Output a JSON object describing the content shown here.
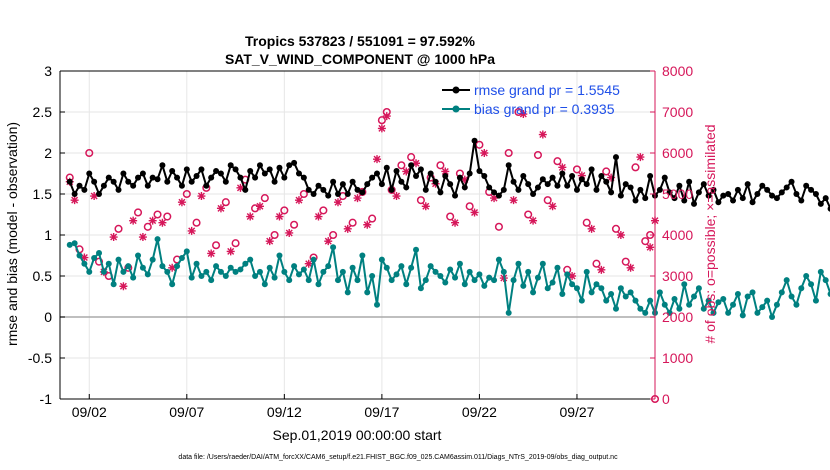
{
  "chart_data": {
    "type": "line",
    "title_line1": "Tropics 537823 / 551091 = 97.592%",
    "title_line2": "SAT_V_WIND_COMPONENT @ 1000 hPa",
    "xlabel": "Sep.01,2019 00:00:00 start",
    "ylabel_left": "rmse and bias (model - observation)",
    "ylabel_right": "# of obs: o=possible; ×=assimilated",
    "footnote": "data file: /Users/raeder/DAI/ATM_forcXX/CAM6_setup/f.e21.FHIST_BGC.f09_025.CAM6assim.011/Diags_NTrS_2019-09/obs_diag_output.nc",
    "xlim": [
      0.5,
      31.0
    ],
    "ylim_left": [
      -1,
      3
    ],
    "ylim_right": [
      0,
      8000
    ],
    "x_ticks": [
      {
        "x": 2,
        "label": "09/02"
      },
      {
        "x": 7,
        "label": "09/07"
      },
      {
        "x": 12,
        "label": "09/12"
      },
      {
        "x": 17,
        "label": "09/17"
      },
      {
        "x": 22,
        "label": "09/22"
      },
      {
        "x": 27,
        "label": "09/27"
      }
    ],
    "y_ticks_left": [
      "3",
      "2.5",
      "2",
      "1.5",
      "1",
      "0.5",
      "0",
      "-0.5",
      "-1"
    ],
    "y_ticks_right": [
      "8000",
      "7000",
      "6000",
      "5000",
      "4000",
      "3000",
      "2000",
      "1000",
      "0"
    ],
    "legend": [
      {
        "label": "rmse grand pr = 1.5545",
        "color": "#000000"
      },
      {
        "label": "bias grand pr = 0.3935",
        "color": "#008080"
      }
    ],
    "colors": {
      "rmse": "#000000",
      "bias": "#008080",
      "obs": "#D6175A",
      "zero_line": "#aaaaaa",
      "grid": "#e6e6e6",
      "legend_text": "#1F4FE8"
    },
    "series": [
      {
        "name": "rmse",
        "axis": "left",
        "x_start": 1.0,
        "x_step": 0.25,
        "values": [
          1.65,
          1.5,
          1.6,
          1.55,
          1.75,
          1.65,
          1.5,
          1.6,
          1.7,
          1.65,
          1.55,
          1.75,
          1.65,
          1.6,
          1.7,
          1.75,
          1.6,
          1.7,
          1.68,
          1.85,
          1.65,
          1.78,
          1.7,
          1.6,
          1.8,
          1.65,
          1.72,
          1.8,
          1.6,
          1.7,
          1.78,
          1.75,
          1.65,
          1.85,
          1.8,
          1.7,
          1.55,
          1.78,
          1.7,
          1.85,
          1.75,
          1.8,
          1.65,
          1.82,
          1.7,
          1.85,
          1.88,
          1.75,
          1.7,
          1.55,
          1.5,
          1.6,
          1.55,
          1.48,
          1.65,
          1.5,
          1.62,
          1.5,
          1.65,
          1.55,
          1.52,
          1.62,
          1.7,
          1.75,
          1.62,
          1.82,
          1.55,
          1.78,
          1.65,
          1.58,
          1.85,
          1.72,
          1.8,
          1.55,
          1.75,
          1.65,
          1.52,
          1.72,
          1.62,
          1.48,
          1.7,
          1.58,
          1.75,
          2.15,
          1.78,
          1.72,
          1.58,
          1.52,
          1.48,
          1.55,
          1.85,
          1.65,
          1.55,
          1.72,
          1.62,
          1.5,
          1.58,
          1.68,
          1.62,
          1.7,
          1.6,
          1.75,
          1.6,
          1.72,
          1.55,
          1.68,
          1.62,
          1.8,
          1.55,
          1.72,
          1.65,
          1.52,
          1.95,
          1.48,
          1.62,
          1.58,
          1.42,
          1.55,
          1.45,
          1.72,
          1.48,
          1.55,
          1.7,
          1.52,
          1.45,
          1.6,
          1.42,
          1.65,
          1.38,
          1.52,
          1.62,
          1.48,
          1.55,
          1.4,
          1.48,
          1.5,
          1.42,
          1.55,
          1.45,
          1.62,
          1.4,
          1.5,
          1.6,
          1.55,
          1.48,
          1.45,
          1.52,
          1.58,
          1.65,
          1.5,
          1.42,
          1.6,
          1.55,
          1.5,
          1.38,
          1.45,
          1.32,
          1.4,
          1.28,
          1.42,
          1.35,
          1.55,
          1.6,
          1.68,
          1.75,
          1.58,
          1.65,
          1.55,
          1.62,
          1.6,
          1.62,
          1.55,
          1.58,
          1.45,
          1.52,
          1.48,
          1.6,
          1.4,
          1.55,
          1.5,
          1.62,
          1.45,
          1.52,
          1.58,
          1.48,
          1.55,
          1.62,
          1.5,
          1.6,
          1.42,
          1.55,
          1.7,
          1.62,
          1.5,
          1.58,
          1.45,
          1.52,
          1.48,
          1.55,
          1.45,
          1.68,
          1.6,
          1.52,
          1.42,
          1.5,
          1.58,
          1.45,
          1.6,
          1.38,
          1.55,
          1.48,
          1.72,
          1.62,
          1.5,
          1.65,
          1.42,
          1.52,
          1.58,
          1.45,
          1.52,
          1.45,
          1.58,
          1.48,
          1.65,
          1.55,
          1.6,
          1.42,
          1.62,
          1.58,
          1.5,
          1.52,
          1.72,
          1.55,
          1.75,
          1.62,
          1.5,
          1.72,
          1.6,
          1.55,
          1.68,
          1.55,
          1.62,
          1.5,
          1.58,
          1.52,
          1.48,
          1.6,
          1.55,
          1.5,
          1.45,
          1.35,
          1.52,
          1.3,
          1.45,
          1.48
        ]
      },
      {
        "name": "bias",
        "axis": "left",
        "x_start": 1.0,
        "x_step": 0.25,
        "values": [
          0.88,
          0.9,
          0.75,
          0.65,
          0.55,
          0.72,
          0.78,
          0.55,
          0.65,
          0.4,
          0.7,
          0.55,
          0.62,
          0.48,
          0.75,
          0.6,
          0.52,
          0.7,
          0.95,
          0.62,
          0.55,
          0.4,
          0.62,
          0.72,
          0.8,
          0.48,
          0.65,
          0.5,
          0.55,
          0.45,
          0.62,
          0.55,
          0.5,
          0.6,
          0.55,
          0.58,
          0.65,
          0.7,
          0.5,
          0.55,
          0.4,
          0.6,
          0.48,
          0.75,
          0.55,
          0.45,
          0.62,
          0.52,
          0.58,
          0.45,
          0.7,
          0.4,
          0.55,
          0.62,
          0.85,
          0.45,
          0.55,
          0.3,
          0.6,
          0.45,
          0.75,
          0.3,
          0.5,
          0.15,
          0.7,
          0.6,
          0.45,
          0.52,
          0.62,
          0.4,
          0.6,
          0.82,
          0.35,
          0.45,
          0.62,
          0.55,
          0.5,
          0.42,
          0.58,
          0.48,
          0.65,
          0.4,
          0.55,
          0.45,
          0.52,
          0.38,
          0.48,
          0.45,
          0.7,
          0.55,
          0.05,
          0.45,
          0.65,
          0.38,
          0.55,
          0.3,
          0.48,
          0.65,
          0.35,
          0.42,
          0.6,
          0.28,
          0.52,
          0.4,
          0.35,
          0.2,
          0.55,
          0.3,
          0.4,
          0.35,
          0.2,
          0.28,
          0.1,
          0.35,
          0.25,
          0.3,
          0.2,
          0.1,
          0.05,
          0.2,
          0.05,
          0.3,
          0.15,
          0.05,
          0.22,
          0.1,
          0.4,
          0.15,
          0.25,
          0.35,
          0.1,
          0.2,
          0.05,
          0.18,
          0.22,
          0.05,
          0.15,
          0.28,
          0.02,
          0.25,
          0.3,
          0.05,
          0.12,
          0.2,
          0.0,
          0.15,
          0.3,
          0.45,
          0.25,
          0.15,
          0.35,
          0.5,
          0.4,
          0.2,
          0.55,
          0.45,
          0.28,
          0.15,
          0.05,
          0.22,
          0.08,
          0.25,
          0.05,
          0.15,
          0.3,
          0.18,
          0.1,
          0.25,
          0.05,
          0.15,
          0.2,
          0.05,
          0.25,
          0.1,
          -0.08,
          0.15,
          -0.05,
          0.1,
          0.25,
          0.05,
          0.15,
          0.3,
          0.2,
          0.08,
          0.25,
          0.15,
          0.3,
          0.22,
          0.35,
          0.25,
          0.1,
          0.2,
          0.35,
          0.4,
          0.3,
          0.2,
          0.15,
          0.38,
          0.28,
          0.4,
          0.38,
          0.45,
          0.4,
          0.35,
          0.2,
          0.42,
          0.35,
          0.45,
          0.72,
          0.3,
          0.05,
          0.15,
          0.2,
          0.08,
          0.4,
          0.15,
          0.05,
          0.38,
          0.25,
          0.45,
          0.58,
          0.05,
          0.4,
          0.25,
          0.48,
          0.35,
          0.55,
          0.3,
          0.42,
          0.25,
          0.3,
          0.45,
          0.55,
          0.28,
          0.4,
          0.3,
          0.02,
          0.3,
          0.35,
          0.4,
          0.45,
          0.3,
          0.58,
          0.62,
          0.45,
          0.52,
          0.3,
          0.35,
          0.3
        ]
      },
      {
        "name": "obs_possible",
        "axis": "right",
        "marker": "o",
        "points": [
          [
            1.0,
            5400
          ],
          [
            1.5,
            3650
          ],
          [
            2.0,
            6000
          ],
          [
            2.5,
            3350
          ],
          [
            3.0,
            3000
          ],
          [
            3.5,
            4150
          ],
          [
            4.0,
            3200
          ],
          [
            4.5,
            4550
          ],
          [
            5.0,
            4200
          ],
          [
            5.5,
            4500
          ],
          [
            6.0,
            4450
          ],
          [
            6.5,
            3400
          ],
          [
            7.0,
            5000
          ],
          [
            7.5,
            4300
          ],
          [
            8.0,
            5150
          ],
          [
            8.5,
            3750
          ],
          [
            9.0,
            4800
          ],
          [
            9.5,
            3800
          ],
          [
            10.0,
            5350
          ],
          [
            10.5,
            4650
          ],
          [
            11.0,
            4900
          ],
          [
            11.5,
            4000
          ],
          [
            12.0,
            4600
          ],
          [
            12.5,
            4250
          ],
          [
            13.0,
            5000
          ],
          [
            13.5,
            3450
          ],
          [
            14.0,
            4600
          ],
          [
            14.5,
            4000
          ],
          [
            15.0,
            4950
          ],
          [
            15.5,
            4300
          ],
          [
            16.0,
            5050
          ],
          [
            16.5,
            4400
          ],
          [
            17.0,
            6800
          ],
          [
            17.25,
            7000
          ],
          [
            17.5,
            5100
          ],
          [
            18.0,
            5700
          ],
          [
            18.5,
            5900
          ],
          [
            19.0,
            4850
          ],
          [
            19.5,
            5400
          ],
          [
            20.0,
            5700
          ],
          [
            20.5,
            4450
          ],
          [
            21.0,
            5500
          ],
          [
            21.5,
            4700
          ],
          [
            22.0,
            6200
          ],
          [
            22.5,
            5050
          ],
          [
            23.0,
            4200
          ],
          [
            23.5,
            6000
          ],
          [
            24.0,
            7000
          ],
          [
            24.5,
            4500
          ],
          [
            25.0,
            5950
          ],
          [
            25.5,
            4850
          ],
          [
            26.0,
            5800
          ],
          [
            26.5,
            3150
          ],
          [
            27.0,
            5600
          ],
          [
            27.5,
            4300
          ],
          [
            28.0,
            3300
          ],
          [
            28.5,
            5550
          ],
          [
            29.0,
            4150
          ],
          [
            29.5,
            3350
          ],
          [
            30.0,
            5650
          ],
          [
            30.5,
            3850
          ],
          [
            30.75,
            4000
          ],
          [
            31.0,
            0
          ]
        ]
      },
      {
        "name": "obs_assimilated",
        "axis": "right",
        "marker": "x",
        "points": [
          [
            1.0,
            5300
          ],
          [
            1.25,
            4850
          ],
          [
            1.75,
            3450
          ],
          [
            2.25,
            4950
          ],
          [
            2.75,
            3100
          ],
          [
            3.25,
            3950
          ],
          [
            3.75,
            2750
          ],
          [
            4.25,
            4350
          ],
          [
            4.75,
            3950
          ],
          [
            5.25,
            4350
          ],
          [
            5.75,
            4300
          ],
          [
            6.25,
            3200
          ],
          [
            6.75,
            4800
          ],
          [
            7.25,
            4100
          ],
          [
            7.75,
            4950
          ],
          [
            8.25,
            3550
          ],
          [
            8.75,
            4650
          ],
          [
            9.25,
            3600
          ],
          [
            9.75,
            5150
          ],
          [
            10.25,
            4450
          ],
          [
            10.75,
            4700
          ],
          [
            11.25,
            3850
          ],
          [
            11.75,
            4450
          ],
          [
            12.25,
            4050
          ],
          [
            12.75,
            4850
          ],
          [
            13.25,
            3300
          ],
          [
            13.75,
            4450
          ],
          [
            14.25,
            3850
          ],
          [
            14.75,
            4800
          ],
          [
            15.25,
            4150
          ],
          [
            15.75,
            4900
          ],
          [
            16.25,
            4250
          ],
          [
            16.75,
            5850
          ],
          [
            17.0,
            6600
          ],
          [
            17.25,
            6900
          ],
          [
            17.75,
            4950
          ],
          [
            18.25,
            5550
          ],
          [
            18.75,
            5750
          ],
          [
            19.25,
            4700
          ],
          [
            19.75,
            5250
          ],
          [
            20.25,
            5550
          ],
          [
            20.75,
            4300
          ],
          [
            21.25,
            5350
          ],
          [
            21.75,
            4550
          ],
          [
            22.25,
            6000
          ],
          [
            22.75,
            4900
          ],
          [
            23.25,
            2950
          ],
          [
            23.75,
            4850
          ],
          [
            24.25,
            6950
          ],
          [
            24.75,
            4350
          ],
          [
            25.25,
            6450
          ],
          [
            25.75,
            4700
          ],
          [
            26.25,
            5650
          ],
          [
            26.75,
            3000
          ],
          [
            27.25,
            5450
          ],
          [
            27.75,
            4150
          ],
          [
            28.25,
            3150
          ],
          [
            28.75,
            5400
          ],
          [
            29.25,
            4000
          ],
          [
            29.75,
            3200
          ],
          [
            30.25,
            5900
          ],
          [
            30.75,
            3700
          ],
          [
            31.0,
            4350
          ]
        ]
      }
    ]
  }
}
